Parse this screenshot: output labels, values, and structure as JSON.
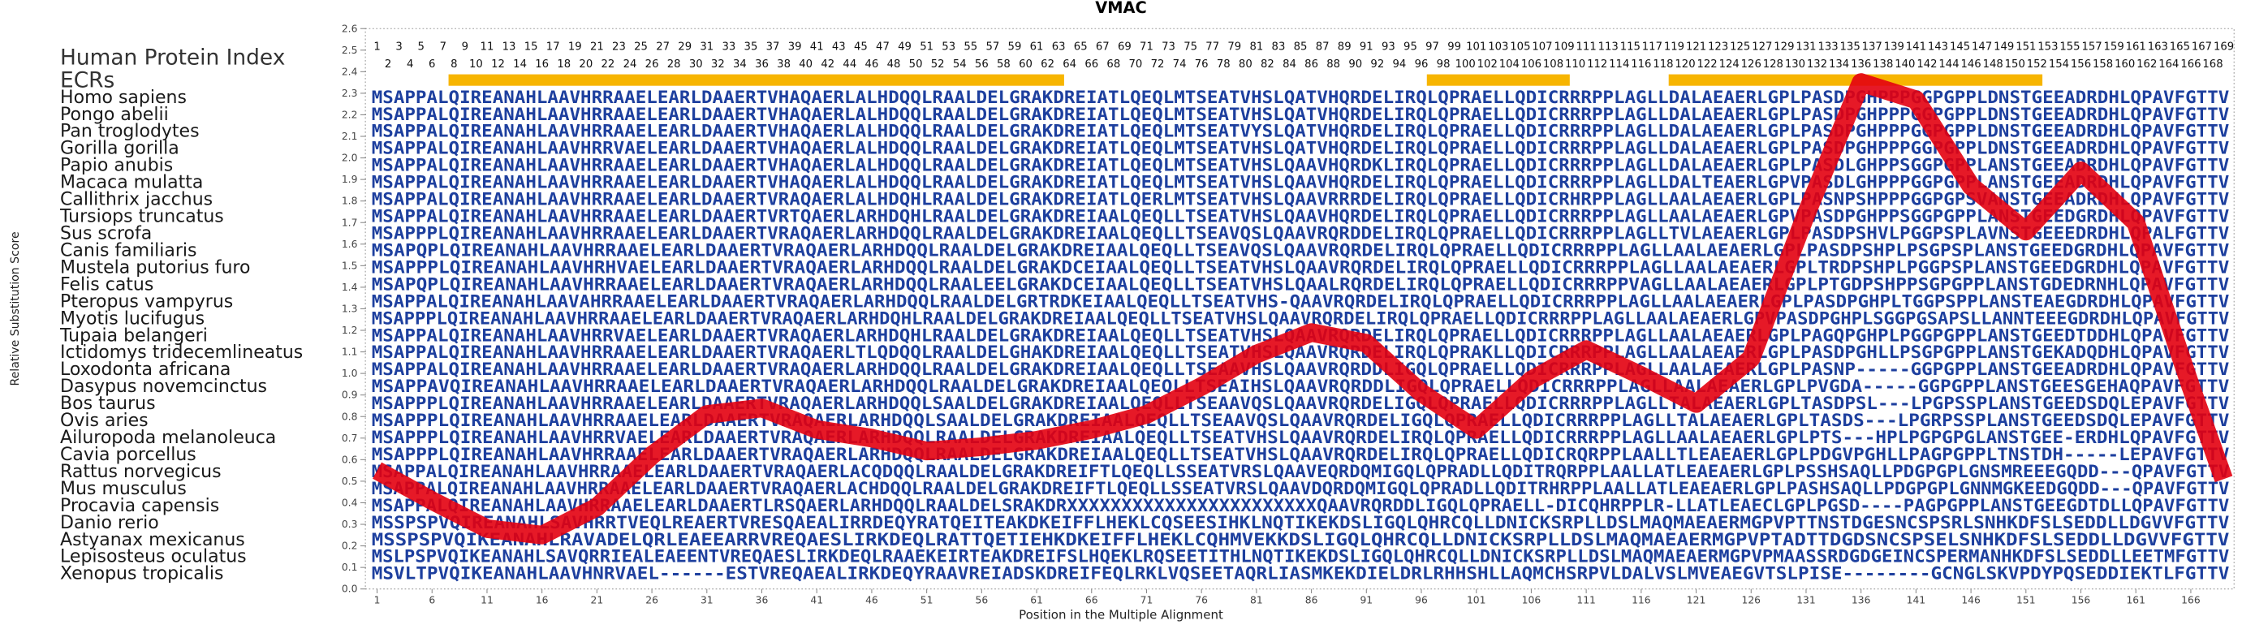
{
  "chart_data": {
    "type": "line",
    "title": "VMAC",
    "x_label": "Position in the Multiple Alignment",
    "y_label": "Relative Substitution Score",
    "xlim": [
      0,
      170
    ],
    "ylim": [
      0,
      2.6
    ],
    "xticks": [
      1,
      6,
      11,
      16,
      21,
      26,
      31,
      36,
      41,
      46,
      51,
      56,
      61,
      66,
      71,
      76,
      81,
      86,
      91,
      96,
      101,
      106,
      111,
      116,
      121,
      126,
      131,
      136,
      141,
      146,
      151,
      156,
      161,
      166
    ],
    "yticks": [
      {
        "value": 0,
        "label": "0.0"
      },
      0.1,
      0.2,
      0.3,
      0.4,
      0.5,
      0.6,
      0.7,
      0.8,
      0.9,
      {
        "value": 1,
        "label": "1.0"
      },
      1.1,
      1.2,
      1.3,
      1.4,
      1.5,
      1.6,
      1.7,
      1.8,
      1.9,
      {
        "value": 2,
        "label": "2.0"
      },
      2.1,
      2.2,
      2.3,
      2.4,
      2.5,
      2.6
    ],
    "series": [
      {
        "color": "#e3000f",
        "x": [
          1,
          6,
          11,
          16,
          21,
          26,
          31,
          36,
          41,
          46,
          51,
          56,
          61,
          66,
          71,
          76,
          81,
          86,
          91,
          96,
          101,
          106,
          111,
          116,
          121,
          126,
          131,
          136,
          141,
          146,
          151,
          156,
          161,
          166,
          169
        ],
        "values": [
          0.55,
          0.41,
          0.28,
          0.25,
          0.38,
          0.62,
          0.81,
          0.84,
          0.74,
          0.7,
          0.64,
          0.66,
          0.69,
          0.74,
          0.81,
          0.94,
          1.09,
          1.19,
          1.14,
          0.91,
          0.74,
          0.97,
          1.11,
          0.99,
          0.86,
          1.07,
          1.74,
          2.35,
          2.27,
          1.87,
          1.66,
          1.94,
          1.7,
          0.94,
          0.51
        ]
      }
    ]
  },
  "human_protein_index": {
    "label": "Human Protein Index",
    "odd": [
      1,
      3,
      5,
      7,
      9,
      11,
      13,
      15,
      17,
      19,
      21,
      23,
      25,
      27,
      29,
      31,
      33,
      35,
      37,
      39,
      41,
      43,
      45,
      47,
      49,
      51,
      53,
      55,
      57,
      59,
      61,
      63,
      65,
      67,
      69,
      71,
      73,
      75,
      77,
      79,
      81,
      83,
      85,
      87,
      89,
      91,
      93,
      95,
      97,
      99,
      101,
      103,
      105,
      107,
      109,
      111,
      113,
      115,
      117,
      119,
      121,
      123,
      125,
      127,
      129,
      131,
      133,
      135,
      137,
      139,
      141,
      143,
      145,
      147,
      149,
      151,
      153,
      155,
      157,
      159,
      161,
      163,
      165,
      167,
      169
    ],
    "even": [
      2,
      4,
      6,
      8,
      10,
      12,
      14,
      16,
      18,
      20,
      22,
      24,
      26,
      28,
      30,
      32,
      34,
      36,
      38,
      40,
      42,
      44,
      46,
      48,
      50,
      52,
      54,
      56,
      58,
      60,
      62,
      64,
      66,
      68,
      70,
      72,
      74,
      76,
      78,
      80,
      82,
      84,
      86,
      88,
      90,
      92,
      94,
      96,
      98,
      100,
      102,
      104,
      106,
      108,
      110,
      112,
      114,
      116,
      118,
      120,
      122,
      124,
      126,
      128,
      130,
      132,
      134,
      136,
      138,
      140,
      142,
      144,
      146,
      148,
      150,
      152,
      154,
      156,
      158,
      160,
      162,
      164,
      166,
      168
    ]
  },
  "ecrs": {
    "label": "ECRs",
    "color": "#f7b500",
    "ranges": [
      [
        8,
        63
      ],
      [
        97,
        109
      ],
      [
        119,
        152
      ]
    ]
  },
  "alignment": [
    {
      "species": "Homo sapiens",
      "sequence": "MSAPPALQIREANAHLAAVHRRAAELEARLDAAERTVHAQAERLALHDQQLRAALDELGRAKDREIATLQEQLMTSEATVHSLQATVHQRDELIRQLQPRAELLQDICRRRPPLAGLLDALAEAERLGPLPASDPGHPPPGGPGPPLDNSTGEEADRDHLQPAVFGTTV"
    },
    {
      "species": "Pongo abelii",
      "sequence": "MSAPPALQIREANAHLAAVHRRAAELEARLDAAERTVHAQAERLALHDQQLRAALDELGRAKDREIATLQEQLMTSEATVHSLQATVHQRDELIRQLQPRAELLQDICRRRPPLAGLLDALAEAERLGPLPASDPGHPPPGGPGPPLDNSTGEEADRDHLQPAVFGTTV"
    },
    {
      "species": "Pan troglodytes",
      "sequence": "MSAPPALQIREANAHLAAVHRRAAELEARLDAAERTVHAQAERLALHDQQLRAALDELGRAKDREIATLQEQLMTSEATVYSLQATVHQRDELIRQLQPRAELLQDICRRRPPLAGLLDALAEAERLGPLPASDPGHPPPGGPGPPLDNSTGEEADRDHLQPAVFGTTV"
    },
    {
      "species": "Gorilla gorilla",
      "sequence": "MSAPPALQIREANAHLAAVHRRVAELEARLDAAERTVHAQAERLALHDQQLRAALDELGRAKDREIATLQEQLMTSEATVHSLQATVHQRDELIRQLQPRAELLQDICRRRPPLAGLLDALAEAERLGPLPASDPGHPPPGGPGPPLDNSTGEEADRDHLQPAVFGTTV"
    },
    {
      "species": "Papio anubis",
      "sequence": "MSAPPALQIREANAHLAAVHRRAAELEARLDAAERTVHAQAERLALHDQQLRAALDELGRAKDREIATLQEQLMTSEATVHSLQAAVHQRDKLIRQLQPRAELLQDICRRRPPLAGLLDALAEAERLGPLPASDLGHPPSGGPGPPLANSTGEEADRDHLQPAVFGTTV"
    },
    {
      "species": "Macaca mulatta",
      "sequence": "MSAPPALQIREANAHLAAVHRRAAELEARLDAAERTVHAQAERLALHDQQLRAALDELGRAKDREIATLQEQLMTSEATVHSLQAAVHQRDELIRQLQPRAELLQDICRRRPPLAGLLDALTEAERLGPVPASDLGHPPPGGPGPPLANSTGEEADRDHLQPAVFGTTV"
    },
    {
      "species": "Callithrix jacchus",
      "sequence": "MSAPPALQIREANAHLAAVHRRAAELEARLDAAERTVRAQAERLALHDQHLRAALDELGRAKDREIATLQERLMTSEATVHSLQAAVRRRDELIRQLQPRAELLQDICRHRPPLAGLLAALAEAERLGPLPASNPSHPPPGGPGPSVANSTGEEADRDHLQPAVFGTTV"
    },
    {
      "species": "Tursiops truncatus",
      "sequence": "MSAPPALQIREANAHLAAVHRRAAELEARLDAAERTVRTQAERLARHDQHLRAALDELGRAKDREIAALQEQLLTSEATVHSLQAAVHQRDELIRQLQPRAELLQDICRRRPPLAGLLAALAEAERLGPVPASDPGHPPSGGPGPPLANSTGEEDGRDHLQPAVFGTTV"
    },
    {
      "species": "Sus scrofa",
      "sequence": "MSAPPPLQIREANAHLAAVHRRAAELEARLDAAERTVRAQAERLARHDQQLRAALDELGRAKDREIAALQEQLLTSEAVQSLQAAVRQRDDELIRQLQPRAELLQDICRRRPPLAGLLTVLAEAERLGPLPASDPSHVLPGGPSPLAVNSTGEEEDRDHLQPALFGTTV"
    },
    {
      "species": "Canis familiaris",
      "sequence": "MSAPQPLQIREANAHLAAVHRRAAELEARLDAAERTVRAQAERLARHDQQLRAALDELGRAKDREIAALQEQLLTSEAVQSLQAAVRQRDELIRQLQPRAELLQDICRRRPPLAGLLAALAEAERLGPLPASDPSHPLPSGPSPLANSTGEEDGRDHLQPAVFGTTV"
    },
    {
      "species": "Mustela putorius furo",
      "sequence": "MSAPPPLQIREANAHLAAVHRHVAELEARLDAAERTVRAQAERLARHDQQLRAALDELGRAKDCEIAALQEQLLTSEATVHSLQAAVRQRDELIRQLQPRAELLQDICRRRPPLAGLLAALAEAERLGPLTRDPSHPLPGGPSPLANSTGEEDGRDHLQPAVFGTTV"
    },
    {
      "species": "Felis catus",
      "sequence": "MSAPQPLQIREANAHLAAVHRRAAELEARLDAAERTVRAQAERLARHDQQLRAALEELGRAKDCEIAALQEQLLTSEATVHSLQAALRQRDELIRQLQPRAELLQDICRRRPPVAGLLAALAEAERLGPLPTGDPSHPPSGPGPPLANSTGDEDRNHLQPAVFGTTV"
    },
    {
      "species": "Pteropus vampyrus",
      "sequence": "MSAPPALQIREANAHLAAVAHRRAAELEARLDAAERTVRAQAERLARHDQQLRAALDELGRTRDKEIAALQEQLLTSEATVHS-QAAVRQRDELIRQLQPRAELLQDICRRRPPLAGLLAALAEAERLGPLPASDPGHPLTGGPSPPLANSTEAEGDRDHLQPAVFGTTV"
    },
    {
      "species": "Myotis lucifugus",
      "sequence": "MSAPPPLQIREANAHLAAVHRRAAELEARLDAAERTVRAQAERLARHDQHLRAALDELGRAKDREIAALQEQLLTSEATVHSLQAAVRQRDELIRQLQPRAELLQDICRRRPPLAGLLAALAEAERLGPVPASDPGHPLSGGPGSAPSLLANNTEEEGDRDHLQPAVFGTTV"
    },
    {
      "species": "Tupaia belangeri",
      "sequence": "MSAPPALQIREANAHLAAVHRRVAELEARLDAAERTVRAQAERLARHDQHLRAALDELGRAKDREIAALQEQLLTSEATVHSLQAAVRQRDELIRQLQPRAELLQDICRRRPPLAGLLAALAEAERLGPLPAGQPGHPLPGGPGPPLANSTGEEDTDDHLQPAVFGTTV"
    },
    {
      "species": "Ictidomys tridecemlineatus",
      "sequence": "MSAPPALQIREANAHLAAVHRRAAELEARLDAAERTVRAQAERLTLQDQQLRAALDELGHAKDREIAALQEQLLTSEATVHSLQAAVRQRDELIRQLQPRAKLLQDICRRRPPLAGLLAALAEAERLGPLPASDPGHLLPSGPGPPLANSTGEKADQDHLQPAVFGTTV"
    },
    {
      "species": "Loxodonta africana",
      "sequence": "MSAPPALQIREANAHLAAVHRRAAELEARLDAAERTVRAQAERLARHDQQLRAALDELGRAKDREIAALQEQLLTSEAAVHSLQAAVRQRDDLIGQLQPRAELLQDICRRRPPLAGLLAALAEAERLGPLPASNP-----GGPGPPLANSTGEEADRDHLQPAVFGTTV"
    },
    {
      "species": "Dasypus novemcinctus",
      "sequence": "MSAPPAVQIREANAHLAAVHRRAAELEARLDAAERTVRAQAERLARHDQQLRAALDELGRAKDREIAALQEQLLTSEAIHSLQAAVRQRDDLIGQLQPRAELLQDICRRRPPLAGLLAALAEAERLGPLPVGDA-----GGPGPPLANSTGEESGEHAQPAVFGTTV"
    },
    {
      "species": "Bos taurus",
      "sequence": "MSAPPPLQIREANAHLAAVHRRAAELEARLDAAERTVRAQAERLARHDQQLSAALDELGRAKDREIAALQEQLLTSEAAVQSLQAAVRQRDELIGQLQPRAELLQDICRRRPPLAGLLTALAEAERLGPLTASDPSL---LPGPSSPLANSTGEEDSDQLEPAVFGTTV"
    },
    {
      "species": "Ovis aries",
      "sequence": "MSAPPPLQIREANAHLAAVHRRAAELEARLDAAERTVRAQAERLARHDQQLSAALDELGRAKDREIAALQEQLLTSEAAVQSLQAAVRQRDELIGQLQPRAELLQDICRRRPPLAGLLTALAEAERLGPLTASDS---LPGRPSSPLANSTGEEDSDQLEPAVFGTTV"
    },
    {
      "species": "Ailuropoda melanoleuca",
      "sequence": "MSAPPPLQIREANAHLAAVHRRVAELEARLDAAERTVRAQAERLARHDQQLRAALDELGRAKDREIAALQEQLLTSEATVHSLQAAVRQRDELIRQLQPRAELLQDICRRRPPLAGLLAALAEAERLGPLPTS---HPLPGPGPGLANSTGEE-ERDHLQPAVFGTTV"
    },
    {
      "species": "Cavia porcellus",
      "sequence": "MSAPPPLQIREANAHLAAVHRRAAELEARLDAAERTVRAQAERLARHDQQLRAALDELGRAKDREIAALQEQLLTSEATVHSLQAAVRQRDELIRQLQPRAELLQDICRQRPPLAALLTLEAEAERLGPLPDGVPGHLLPAGPGPPLTNSTDH-----LEPAVFGTTV"
    },
    {
      "species": "Rattus norvegicus",
      "sequence": "MSAPPALQIREANAHLAAVHRRAAELEARLDAAERTVRAQAERLACQDQQLRAALDELGRAKDREIFTLQEQLLSSEATVRSLQAAVEQRDQMIGQLQPRADLLQDITRQRPPLAALLATLEAEAERLGPLPSSHSAQLLPDGPGPLGNSMREEEGQDD---QPAVFGTTV"
    },
    {
      "species": "Mus musculus",
      "sequence": "MSAPPALQIREANAHLAAVHRRAAELEARLDAAERTVRAQAERLACHDQQLRAALDELGRAKDREIFTLQEQLLSSEATVRSLQAAVDQRDQMIGQLQPRADLLQDITRHRPPLAALLATLEAEAERLGPLPASHSAQLLPDGPGPLGNNMGKEEDGQDD---QPAVFGTTV"
    },
    {
      "species": "Procavia capensis",
      "sequence": "MSAPPALQIREANAHLAAVHRRAAELEARLDAAERTLRSQAERLARHDQQLRAALDELSRAKDRXXXXXXXXXXXXXXXXXXXXXXXQAAVRQRDDLIGQLQPRAELL-DICQHRPPLR-LLATLEAECLGPLPGSD----PAGPGPPLANSTGEEGDTDLLQPAVFGTTV"
    },
    {
      "species": "Danio rerio",
      "sequence": "MSSPSPVQIREANAHLSAVHRRTVEQLREAERTVRESQAEALIRRDEQYRATQEITEAKDKEIFFLHEKLCQSEESIHKLNQTIKEKDSLIGQLQHRCQLLDNICKSRPLLDSLMAQMAEAERMGPVPTTNSTDGESNCSPSRLSNHKDFSLSEDDLLDGVVFGTTV"
    },
    {
      "species": "Astyanax mexicanus",
      "sequence": "MSSPSPVQIKEANAHLRAVADELQRLEAEEARRVREQAESLIRKDEQLRATTQETIEHKDKEIFFLHEKLCQHMVEKKDSLIGQLQHRCQLLDNICKSRPLLDSLMAQMAEAERMGPVPTADTTDGDSNCSPSELSNHKDFSLSEDDLLDGVVFGTTV"
    },
    {
      "species": "Lepisosteus oculatus",
      "sequence": "MSLPSPVQIKEANAHLSAVQRRIEALEAEENTVREQAESLIRKDEQLRAAEKEIRTEAKDREIFSLHQEKLRQSEETITHLNQTIKEKDSLIGQLQHRCQLLDNICKSRPLLDSLMAQMAEAERMGPVPMAASSRDGDGEINCSPERMANHKDFSLSEDDLLEETMFGTTV"
    },
    {
      "species": "Xenopus tropicalis",
      "sequence": "MSVLTPVQIKEANAHLAAVHNRVAEL------ESTVREQAEALIRKDEQYRAAVREIADSKDREIFEQLRKLVQSEETAQRLIASMKEKDIELDRLRHHSHLLAQMCHSRPVLDALVSLMVEAEGVTSLPISE--------GCNGLSKVPDYPQSEDDIEKTLFGTTV"
    }
  ]
}
